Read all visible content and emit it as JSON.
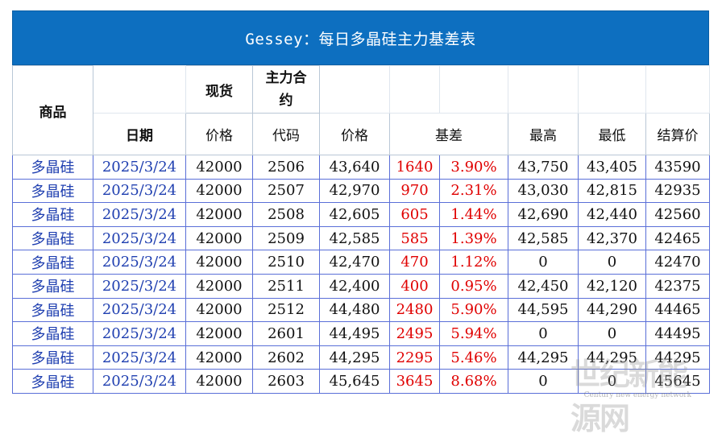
{
  "title": "Gessey：每日多晶硅主力基差表",
  "headers": {
    "product": "商品",
    "spot": "现货",
    "main_contract": "主力合约",
    "date": "日期",
    "price": "价格",
    "code": "代码",
    "contract_price": "价格",
    "basis": "基差",
    "high": "最高",
    "low": "最低",
    "settlement": "结算价"
  },
  "rows": [
    {
      "product": "多晶硅",
      "date": "2025/3/24",
      "spot": "42000",
      "code": "2506",
      "price": "43,640",
      "basis": "1640",
      "basis_pct": "3.90%",
      "high": "43,750",
      "low": "43,405",
      "settle": "43590"
    },
    {
      "product": "多晶硅",
      "date": "2025/3/24",
      "spot": "42000",
      "code": "2507",
      "price": "42,970",
      "basis": "970",
      "basis_pct": "2.31%",
      "high": "43,030",
      "low": "42,815",
      "settle": "42935"
    },
    {
      "product": "多晶硅",
      "date": "2025/3/24",
      "spot": "42000",
      "code": "2508",
      "price": "42,605",
      "basis": "605",
      "basis_pct": "1.44%",
      "high": "42,690",
      "low": "42,440",
      "settle": "42560"
    },
    {
      "product": "多晶硅",
      "date": "2025/3/24",
      "spot": "42000",
      "code": "2509",
      "price": "42,585",
      "basis": "585",
      "basis_pct": "1.39%",
      "high": "42,585",
      "low": "42,370",
      "settle": "42465"
    },
    {
      "product": "多晶硅",
      "date": "2025/3/24",
      "spot": "42000",
      "code": "2510",
      "price": "42,470",
      "basis": "470",
      "basis_pct": "1.12%",
      "high": "0",
      "low": "0",
      "settle": "42470"
    },
    {
      "product": "多晶硅",
      "date": "2025/3/24",
      "spot": "42000",
      "code": "2511",
      "price": "42,400",
      "basis": "400",
      "basis_pct": "0.95%",
      "high": "42,450",
      "low": "42,120",
      "settle": "42375"
    },
    {
      "product": "多晶硅",
      "date": "2025/3/24",
      "spot": "42000",
      "code": "2512",
      "price": "44,480",
      "basis": "2480",
      "basis_pct": "5.90%",
      "high": "44,595",
      "low": "44,290",
      "settle": "44465"
    },
    {
      "product": "多晶硅",
      "date": "2025/3/24",
      "spot": "42000",
      "code": "2601",
      "price": "44,495",
      "basis": "2495",
      "basis_pct": "5.94%",
      "high": "0",
      "low": "0",
      "settle": "44495"
    },
    {
      "product": "多晶硅",
      "date": "2025/3/24",
      "spot": "42000",
      "code": "2602",
      "price": "44,295",
      "basis": "2295",
      "basis_pct": "5.46%",
      "high": "44,295",
      "low": "44,295",
      "settle": "44295"
    },
    {
      "product": "多晶硅",
      "date": "2025/3/24",
      "spot": "42000",
      "code": "2603",
      "price": "45,645",
      "basis": "3645",
      "basis_pct": "8.68%",
      "high": "0",
      "low": "0",
      "settle": "45645"
    }
  ],
  "watermark": {
    "text": "世纪新能源网",
    "subtext": "Century new energy network"
  }
}
